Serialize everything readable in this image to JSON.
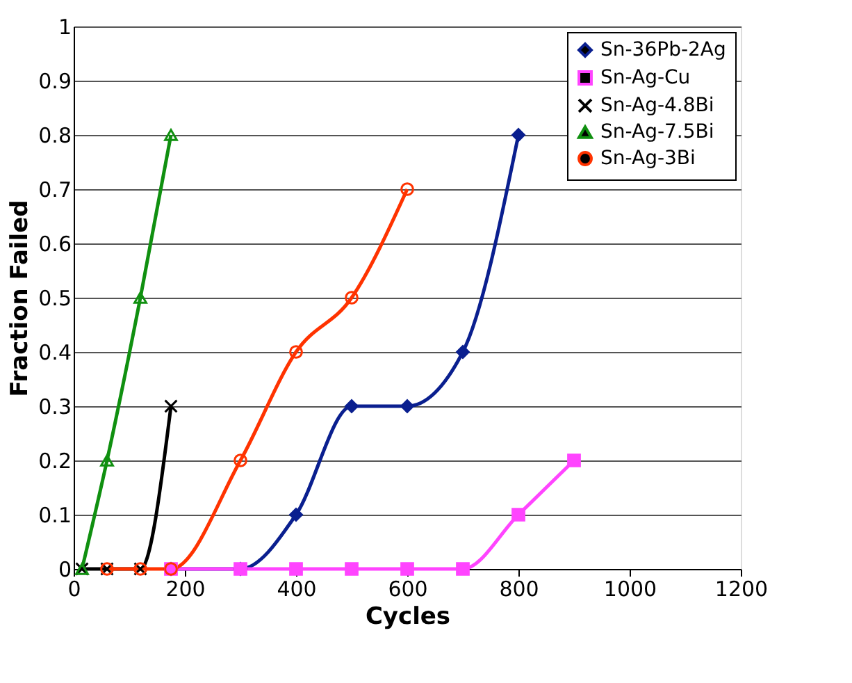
{
  "chart_data": {
    "type": "line",
    "xlabel": "Cycles",
    "ylabel": "Fraction Failed",
    "xlim": [
      0,
      1200
    ],
    "xticks": [
      0,
      200,
      400,
      600,
      800,
      1000,
      1200
    ],
    "ylim": [
      0,
      1
    ],
    "yticks": [
      0,
      0.1,
      0.2,
      0.3,
      0.4,
      0.5,
      0.6,
      0.7,
      0.8,
      0.9,
      1
    ],
    "grid": "y",
    "legend": "top right",
    "series": [
      {
        "name": "Sn-36Pb-2Ag",
        "color": "#0a1f8f",
        "marker": "diamond",
        "x": [
          175,
          300,
          400,
          500,
          600,
          700,
          800
        ],
        "values": [
          0,
          0,
          0.1,
          0.3,
          0.3,
          0.4,
          0.8
        ]
      },
      {
        "name": "Sn-Ag-Cu",
        "color": "#ff44ff",
        "marker": "square",
        "x": [
          175,
          300,
          400,
          500,
          600,
          700,
          800,
          900
        ],
        "values": [
          0,
          0,
          0,
          0,
          0,
          0,
          0.1,
          0.2
        ]
      },
      {
        "name": "Sn-Ag-4.8Bi",
        "color": "#000000",
        "marker": "cross",
        "x": [
          15,
          60,
          120,
          175
        ],
        "values": [
          0,
          0,
          0,
          0.3
        ]
      },
      {
        "name": "Sn-Ag-7.5Bi",
        "color": "#109010",
        "marker": "triangle",
        "x": [
          15,
          60,
          120,
          175
        ],
        "values": [
          0,
          0.2,
          0.5,
          0.8
        ]
      },
      {
        "name": "Sn-Ag-3Bi",
        "color": "#ff3300",
        "marker": "circle",
        "x": [
          60,
          120,
          175,
          300,
          400,
          500,
          600
        ],
        "values": [
          0,
          0,
          0,
          0.2,
          0.4,
          0.5,
          0.7
        ]
      }
    ]
  }
}
